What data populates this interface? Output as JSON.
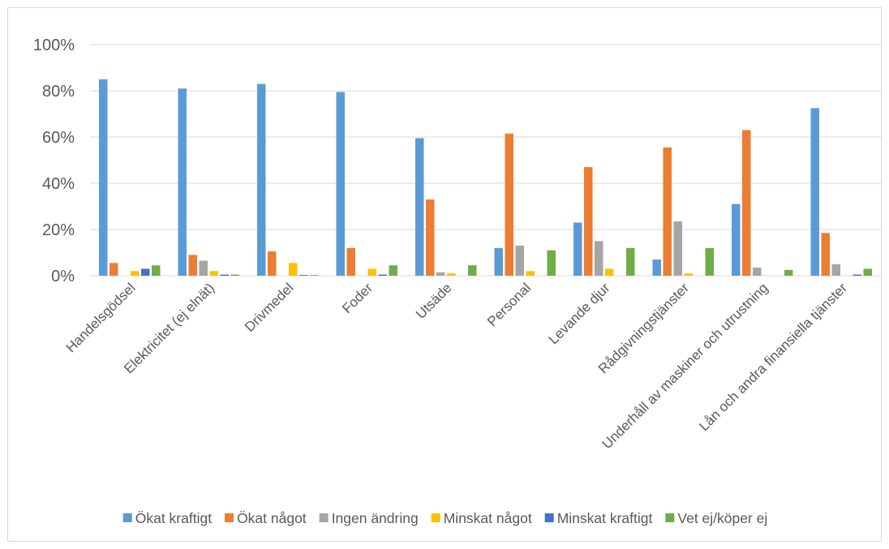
{
  "chart_data": {
    "type": "bar",
    "categories": [
      "Handelsgödsel",
      "Elektricitet (ej elnät)",
      "Drivmedel",
      "Foder",
      "Utsäde",
      "Personal",
      "Levande djur",
      "Rådgivningstjänster",
      "Underhåll av maskiner och utrustning",
      "Lån och andra finansiella tjänster"
    ],
    "series": [
      {
        "name": "Ökat kraftigt",
        "color": "#5b9bd5",
        "values": [
          85,
          81,
          83,
          79.5,
          59.5,
          12,
          23,
          7,
          31,
          72.5
        ]
      },
      {
        "name": "Ökat något",
        "color": "#ed7d31",
        "values": [
          5.5,
          9,
          10.5,
          12,
          33,
          61.5,
          47,
          55.5,
          63,
          18.5
        ]
      },
      {
        "name": "Ingen ändring",
        "color": "#a5a5a5",
        "values": [
          0,
          6.5,
          0,
          0,
          1.5,
          13,
          15,
          23.5,
          3.5,
          5
        ]
      },
      {
        "name": "Minskat något",
        "color": "#ffc000",
        "values": [
          2,
          2,
          5.5,
          3,
          1,
          2,
          3,
          1,
          0,
          0
        ]
      },
      {
        "name": "Minskat kraftigt",
        "color": "#4472c4",
        "values": [
          3,
          0.5,
          0.3,
          0.5,
          0,
          0,
          0,
          0,
          0,
          0.5
        ]
      },
      {
        "name": "Vet ej/köper ej",
        "color": "#70ad47",
        "values": [
          4.5,
          0.5,
          0.3,
          4.5,
          4.5,
          11,
          12,
          12,
          2.5,
          3
        ]
      }
    ],
    "yticks": [
      "0%",
      "20%",
      "40%",
      "60%",
      "80%",
      "100%"
    ],
    "ylim": [
      0,
      100
    ],
    "grid": true,
    "legend_position": "bottom"
  }
}
